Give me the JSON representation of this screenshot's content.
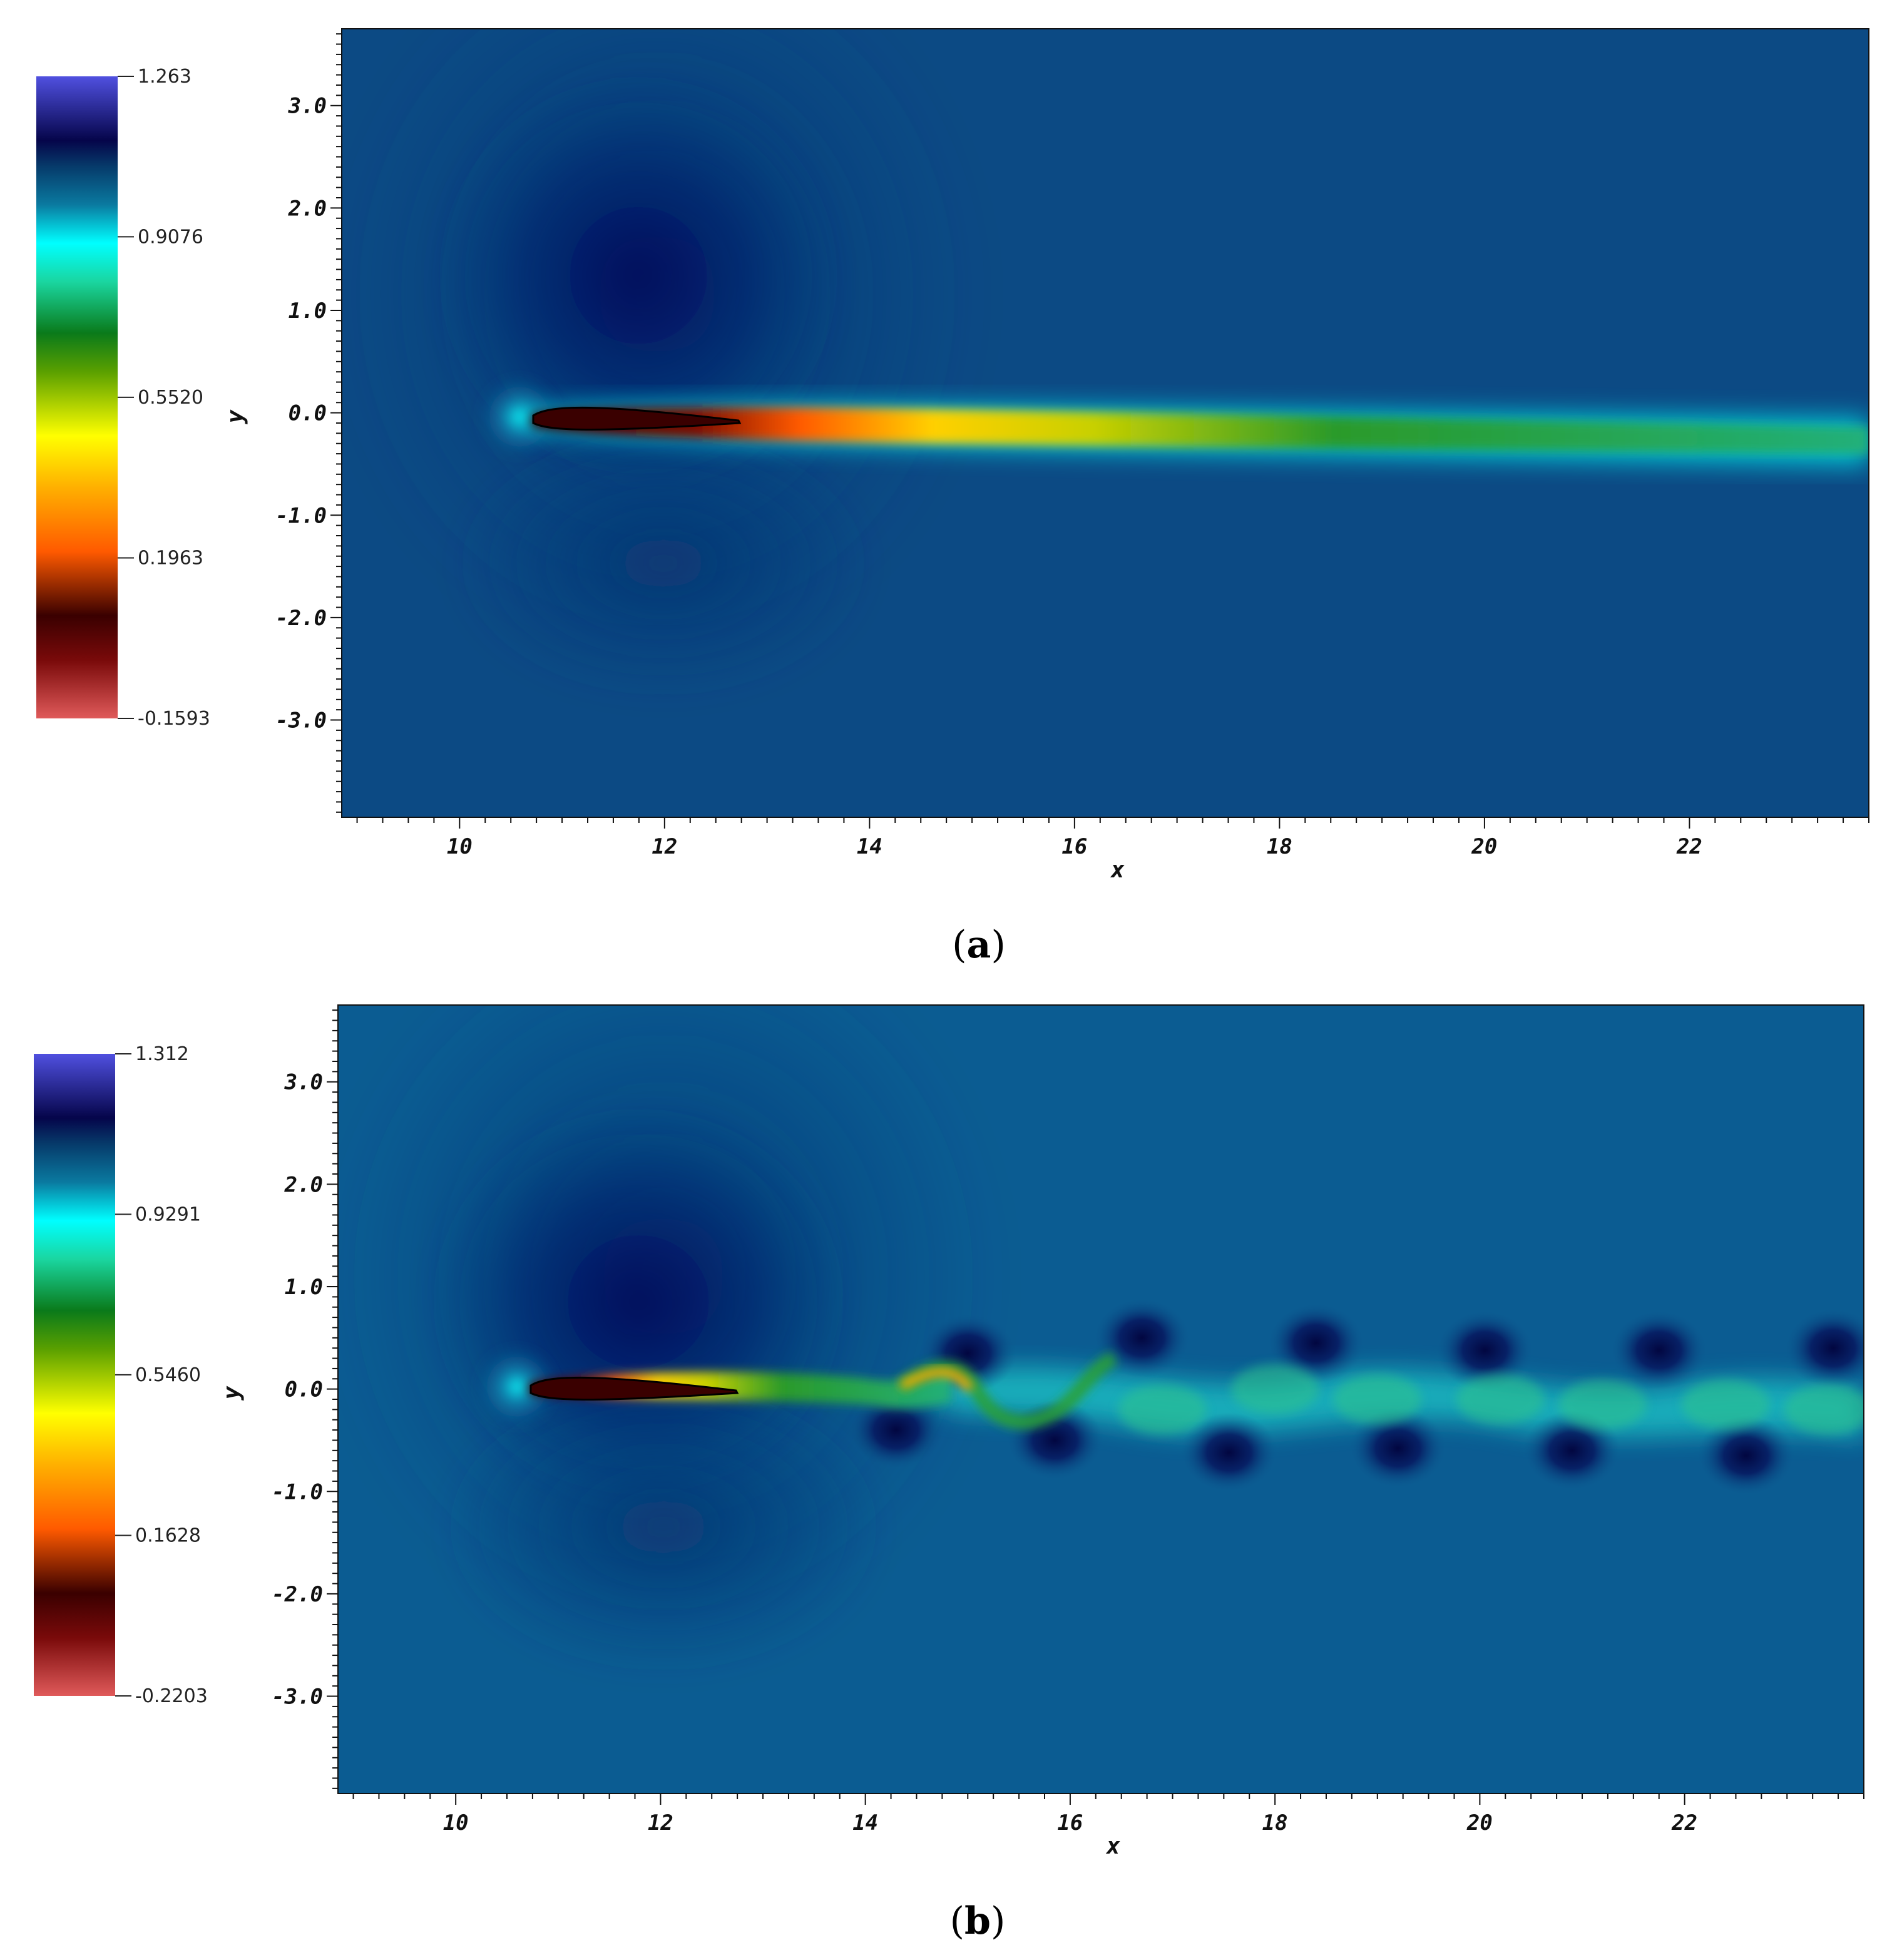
{
  "chart_data": [
    {
      "type": "heatmap",
      "panel": "a",
      "caption_letter": "a",
      "xlabel": "x",
      "ylabel": "y",
      "xlim": [
        8.85,
        23.75
      ],
      "ylim": [
        -3.95,
        3.75
      ],
      "x_ticks": [
        "10",
        "12",
        "14",
        "16",
        "18",
        "20",
        "22"
      ],
      "x_tick_values": [
        10,
        12,
        14,
        16,
        18,
        20,
        22
      ],
      "y_ticks": [
        "3.0",
        "2.0",
        "1.0",
        "0.0",
        "-1.0",
        "-2.0",
        "-3.0"
      ],
      "y_tick_values": [
        3,
        2,
        1,
        0,
        -1,
        -2,
        -3
      ],
      "colorbar": {
        "labels": [
          "1.263",
          "0.9076",
          "0.5520",
          "0.1963",
          "-0.1593"
        ],
        "values": [
          1.263,
          0.9076,
          0.552,
          0.1963,
          -0.1593
        ],
        "min": -0.1593,
        "max": 1.263
      },
      "wake": "steady"
    },
    {
      "type": "heatmap",
      "panel": "b",
      "caption_letter": "b",
      "xlabel": "x",
      "ylabel": "y",
      "xlim": [
        8.85,
        23.75
      ],
      "ylim": [
        -3.95,
        3.75
      ],
      "x_ticks": [
        "10",
        "12",
        "14",
        "16",
        "18",
        "20",
        "22"
      ],
      "x_tick_values": [
        10,
        12,
        14,
        16,
        18,
        20,
        22
      ],
      "y_ticks": [
        "3.0",
        "2.0",
        "1.0",
        "0.0",
        "-1.0",
        "-2.0",
        "-3.0"
      ],
      "y_tick_values": [
        3,
        2,
        1,
        0,
        -1,
        -2,
        -3
      ],
      "colorbar": {
        "labels": [
          "1.312",
          "0.9291",
          "0.5460",
          "0.1628",
          "-0.2203"
        ],
        "values": [
          1.312,
          0.9291,
          0.546,
          0.1628,
          -0.2203
        ],
        "min": -0.2203,
        "max": 1.312
      },
      "wake": "vortex-street"
    }
  ],
  "colors": {
    "background_a": "#0c4a84",
    "background_b": "#0b5c92",
    "colormap": [
      "#e05a5a",
      "#5a0000",
      "#ff6a00",
      "#ffff00",
      "#1e8a1e",
      "#00ffff",
      "#0b5a8a",
      "#06065a",
      "#4444d6"
    ]
  }
}
